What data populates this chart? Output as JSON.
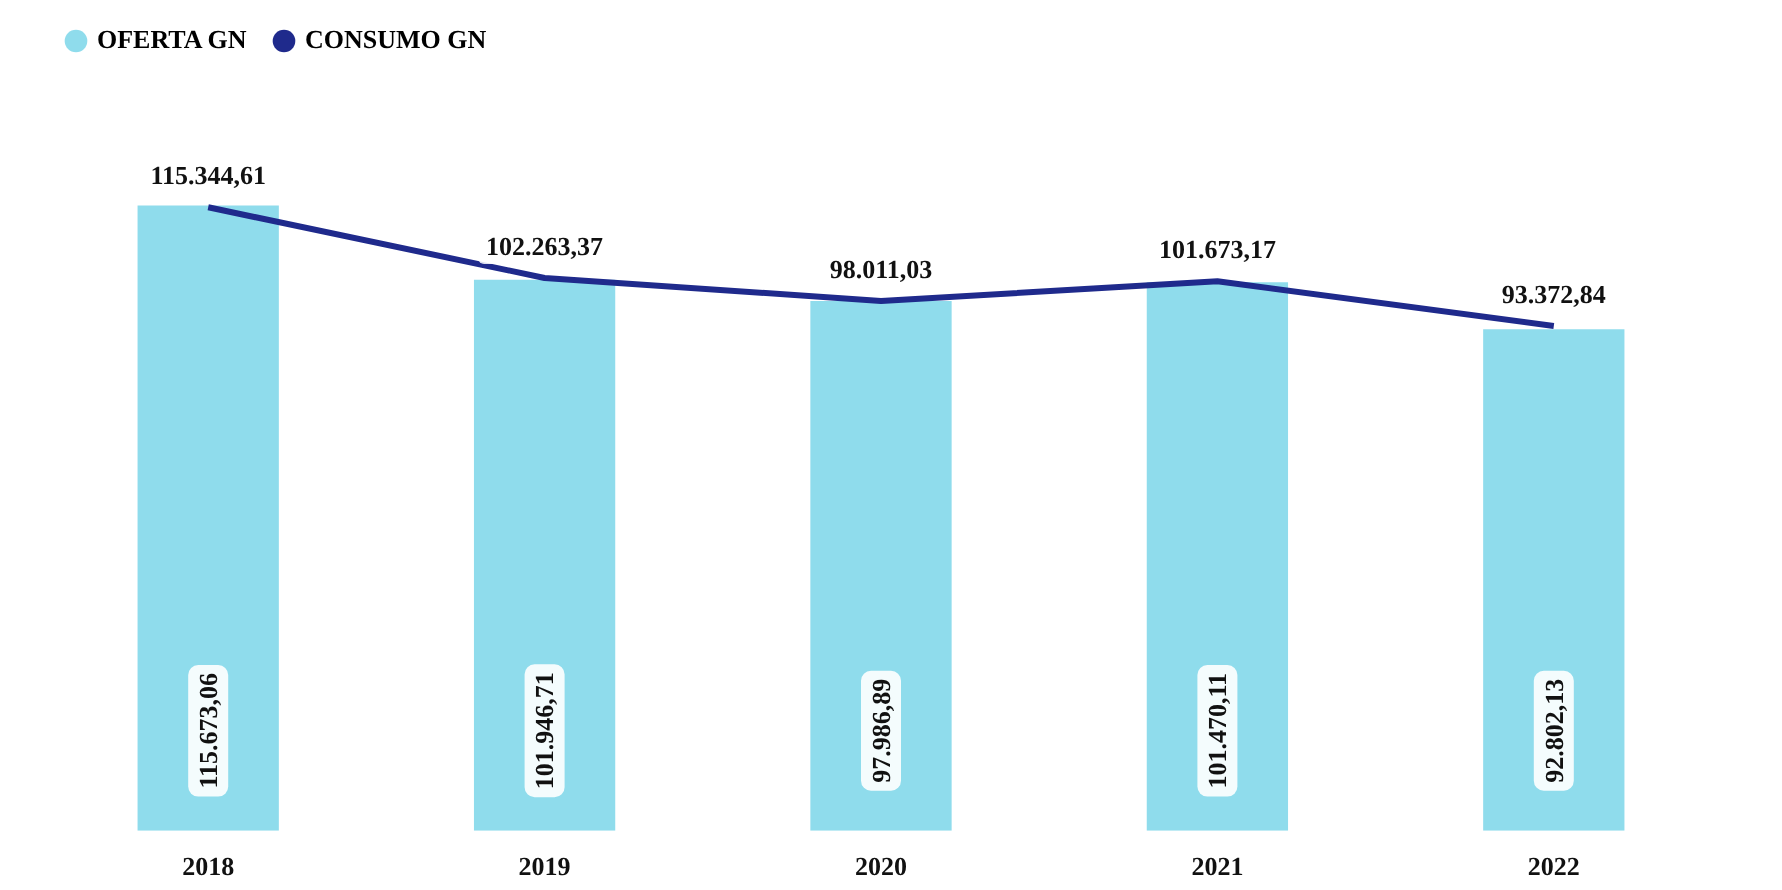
{
  "chart_data": {
    "type": "bar",
    "categories": [
      "2018",
      "2019",
      "2020",
      "2021",
      "2022"
    ],
    "legend": "top left",
    "series": [
      {
        "name": "OFERTA GN",
        "color": "#8fdcec",
        "values": [
          115673.06,
          101946.71,
          97986.89,
          101470.11,
          92802.13
        ],
        "value_labels": [
          "115.673,06",
          "101.946,71",
          "97.986,89",
          "101.470,11",
          "92.802,13"
        ]
      },
      {
        "name": "CONSUMO GN",
        "type": "line",
        "color": "#1f2a8c",
        "marker": "none",
        "values": [
          115344.61,
          102263.37,
          98011.03,
          101673.17,
          93372.84
        ],
        "value_labels": [
          "115.344,61",
          "102.263,37",
          "98.011,03",
          "101.673,17",
          "93.372,84"
        ]
      }
    ]
  }
}
